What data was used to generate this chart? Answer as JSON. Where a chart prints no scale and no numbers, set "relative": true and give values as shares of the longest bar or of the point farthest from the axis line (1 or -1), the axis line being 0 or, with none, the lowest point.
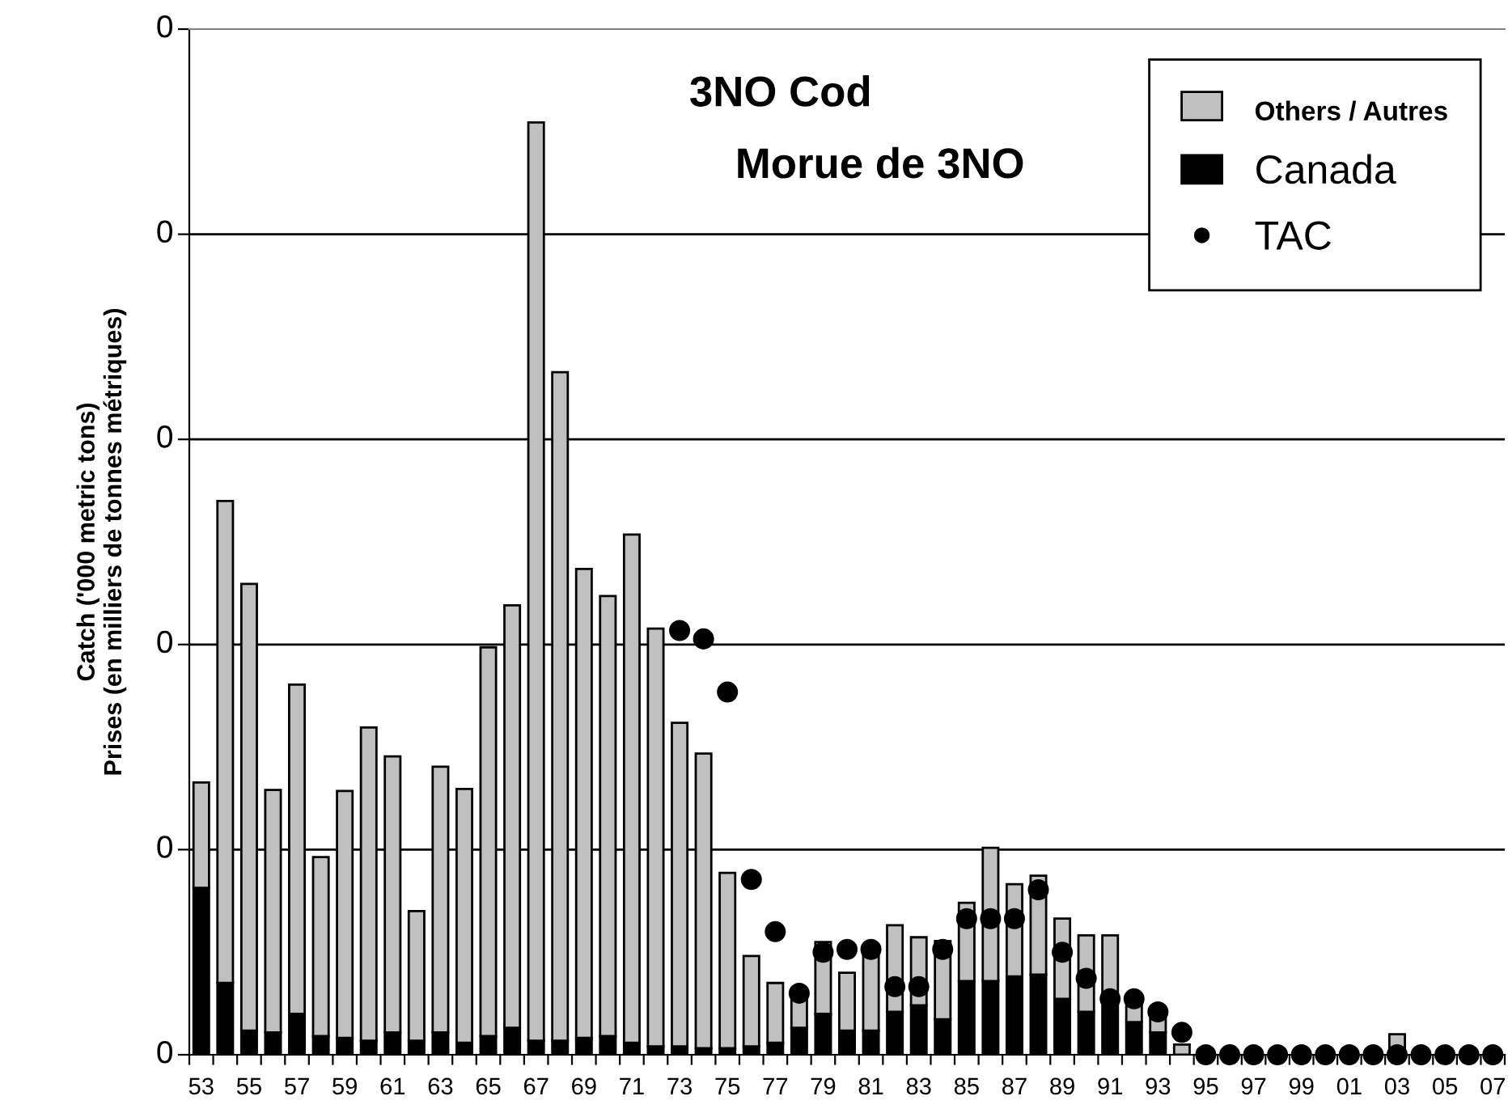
{
  "chart_data": {
    "type": "bar",
    "stacked": true,
    "relative": true,
    "title": "3NO Cod",
    "subtitle": "Morue de 3NO",
    "ylabel": "Catch ('000 metric tons)\nPrises (en milliers de tonnes métriques)",
    "annotations": [
      "0",
      "0",
      "0",
      "0",
      "0",
      "0"
    ],
    "categories": [
      "53",
      null,
      "55",
      null,
      "57",
      null,
      "59",
      null,
      "61",
      null,
      "63",
      null,
      "65",
      null,
      "67",
      null,
      "69",
      null,
      "71",
      null,
      "73",
      null,
      "75",
      null,
      "77",
      null,
      "79",
      null,
      "81",
      null,
      "83",
      null,
      "85",
      null,
      "87",
      null,
      "89",
      null,
      "91",
      null,
      "93",
      null,
      "95",
      null,
      "97",
      null,
      "99",
      null,
      "01",
      null,
      "03",
      null,
      "05",
      null,
      "07"
    ],
    "grid": "y",
    "legend": "top right",
    "series": [
      {
        "name": "Canada",
        "color": "#000000",
        "values": [
          0.179,
          0.077,
          0.026,
          0.024,
          0.044,
          0.02,
          0.018,
          0.015,
          0.024,
          0.015,
          0.024,
          0.013,
          0.02,
          0.029,
          0.015,
          0.015,
          0.018,
          0.02,
          0.013,
          0.009,
          0.009,
          0.007,
          0.007,
          0.009,
          0.013,
          0.029,
          0.044,
          0.026,
          0.026,
          0.046,
          0.053,
          0.038,
          0.079,
          0.079,
          0.084,
          0.086,
          0.06,
          0.046,
          0.06,
          0.035,
          0.024,
          0,
          0,
          0,
          0,
          0,
          0,
          0,
          0,
          null,
          0,
          0,
          0,
          0,
          0
        ]
      },
      {
        "name": "Others / Autres",
        "color": "#c0c0c0",
        "values": [
          0.113,
          0.517,
          0.479,
          0.26,
          0.353,
          0.192,
          0.265,
          0.336,
          0.296,
          0.139,
          0.285,
          0.272,
          0.417,
          0.453,
          0.985,
          0.717,
          0.503,
          0.472,
          0.545,
          0.448,
          0.347,
          0.316,
          0.188,
          0.097,
          0.064,
          0.038,
          0.077,
          0.062,
          0.082,
          0.093,
          0.073,
          0.084,
          0.084,
          0.143,
          0.099,
          0.106,
          0.086,
          0.082,
          0.068,
          0.022,
          0.022,
          0.011,
          0,
          0,
          0,
          0,
          0,
          0,
          0,
          0,
          0.022,
          0,
          0,
          0,
          0
        ]
      },
      {
        "name": "TAC",
        "type": "scatter",
        "color": "#000000",
        "marker": "circle",
        "values": [
          null,
          null,
          null,
          null,
          null,
          null,
          null,
          null,
          null,
          null,
          null,
          null,
          null,
          null,
          null,
          null,
          null,
          null,
          null,
          null,
          0.455,
          0.446,
          0.389,
          0.188,
          0.132,
          0.066,
          0.11,
          0.113,
          0.113,
          0.073,
          0.073,
          0.113,
          0.146,
          0.146,
          0.146,
          0.177,
          0.11,
          0.082,
          0.06,
          0.06,
          0.046,
          0.024,
          0,
          0,
          0,
          0,
          0,
          0,
          0,
          0,
          0,
          0,
          0,
          0,
          0
        ]
      }
    ]
  }
}
